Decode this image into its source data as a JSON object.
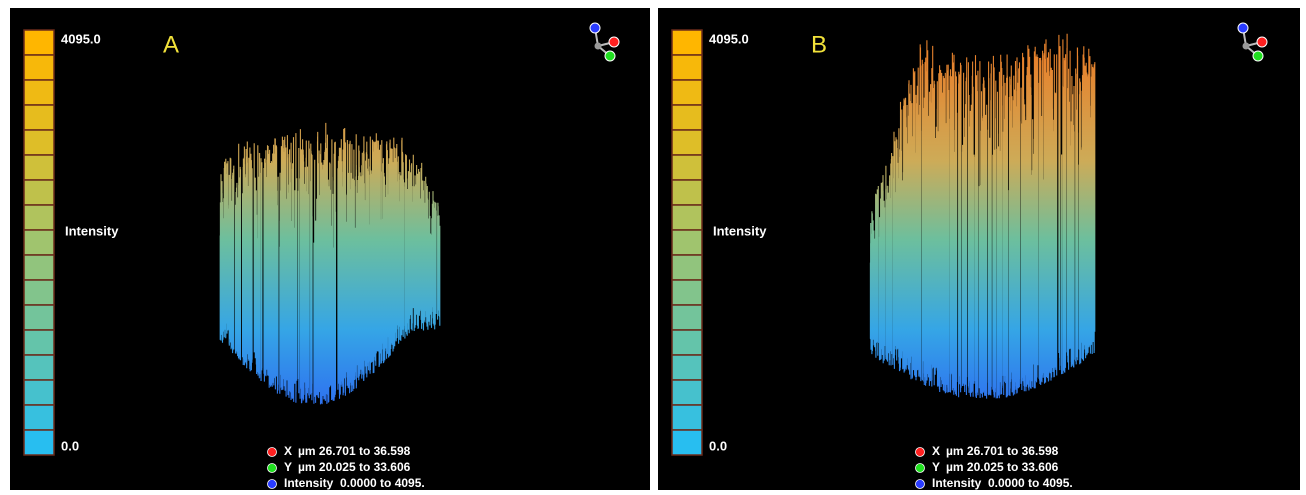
{
  "panels": [
    {
      "label": "A",
      "scale_max": "4095.0",
      "scale_title": "Intensity",
      "scale_min": "0.0",
      "legend": [
        {
          "axis": "X",
          "range": "µm 26.701 to 36.598"
        },
        {
          "axis": "Y",
          "range": "µm 20.025 to 33.606"
        },
        {
          "axis": "Intensity",
          "range": "0.0000 to  4095."
        }
      ]
    },
    {
      "label": "B",
      "scale_max": "4095.0",
      "scale_title": "Intensity",
      "scale_min": "0.0",
      "legend": [
        {
          "axis": "X",
          "range": "µm 26.701 to 36.598"
        },
        {
          "axis": "Y",
          "range": "µm 20.025 to 33.606"
        },
        {
          "axis": "Intensity",
          "range": "0.0000 to  4095."
        }
      ]
    }
  ]
}
